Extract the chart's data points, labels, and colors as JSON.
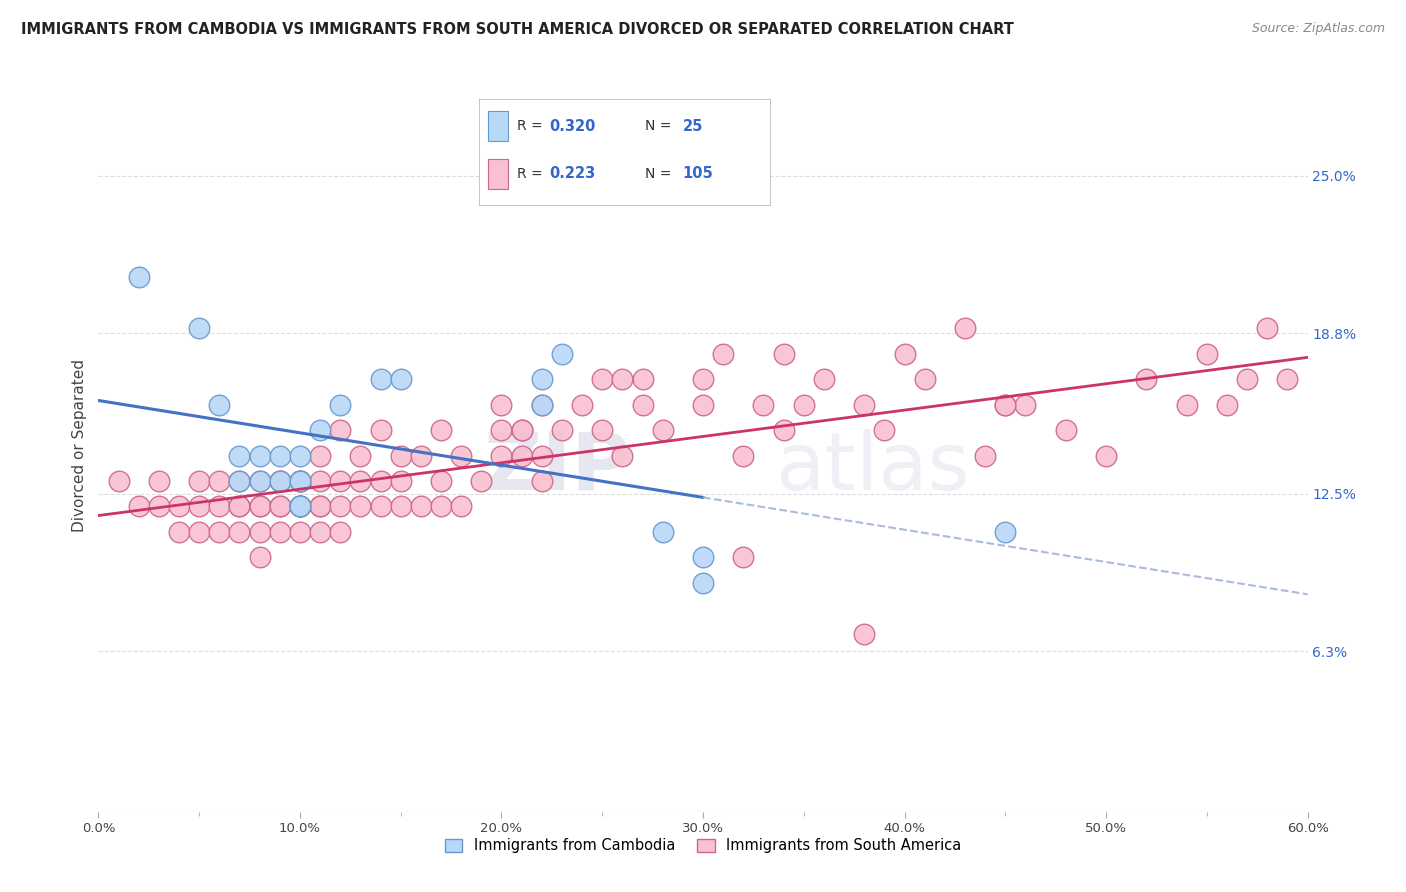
{
  "title": "IMMIGRANTS FROM CAMBODIA VS IMMIGRANTS FROM SOUTH AMERICA DIVORCED OR SEPARATED CORRELATION CHART",
  "source_text": "Source: ZipAtlas.com",
  "ylabel": "Divorced or Separated",
  "xlim": [
    0.0,
    0.6
  ],
  "ylim": [
    0.0,
    0.2875
  ],
  "xtick_labels": [
    "0.0%",
    "",
    "10.0%",
    "",
    "20.0%",
    "",
    "30.0%",
    "",
    "40.0%",
    "",
    "50.0%",
    "",
    "60.0%"
  ],
  "xtick_vals": [
    0.0,
    0.05,
    0.1,
    0.15,
    0.2,
    0.25,
    0.3,
    0.35,
    0.4,
    0.45,
    0.5,
    0.55,
    0.6
  ],
  "ytick_vals_right": [
    0.063,
    0.125,
    0.188,
    0.25
  ],
  "ytick_labels_right": [
    "6.3%",
    "12.5%",
    "18.8%",
    "25.0%"
  ],
  "R_cambodia": 0.32,
  "N_cambodia": 25,
  "R_south_america": 0.223,
  "N_south_america": 105,
  "color_cambodia": "#b8d8f8",
  "color_south_america": "#f8c0d0",
  "edge_color_cambodia": "#6699cc",
  "edge_color_south_america": "#cc6688",
  "line_color_cambodia": "#4472c4",
  "line_color_south_america": "#cc3366",
  "dash_color_cambodia": "#aabbdd",
  "legend_label_cambodia": "Immigrants from Cambodia",
  "legend_label_south_america": "Immigrants from South America",
  "background_color": "#ffffff",
  "grid_color": "#dddddd",
  "title_color": "#222222",
  "watermark_zip": "ZIP",
  "watermark_atlas": "atlas",
  "cambodia_x": [
    0.02,
    0.05,
    0.06,
    0.07,
    0.07,
    0.08,
    0.08,
    0.09,
    0.09,
    0.1,
    0.1,
    0.1,
    0.1,
    0.1,
    0.11,
    0.12,
    0.14,
    0.15,
    0.22,
    0.22,
    0.23,
    0.28,
    0.3,
    0.3,
    0.45
  ],
  "cambodia_y": [
    0.21,
    0.19,
    0.16,
    0.14,
    0.13,
    0.14,
    0.13,
    0.14,
    0.13,
    0.14,
    0.13,
    0.13,
    0.12,
    0.12,
    0.15,
    0.16,
    0.17,
    0.17,
    0.17,
    0.16,
    0.18,
    0.11,
    0.1,
    0.09,
    0.11
  ],
  "south_america_x": [
    0.01,
    0.02,
    0.03,
    0.03,
    0.04,
    0.04,
    0.05,
    0.05,
    0.05,
    0.06,
    0.06,
    0.06,
    0.07,
    0.07,
    0.07,
    0.07,
    0.08,
    0.08,
    0.08,
    0.08,
    0.08,
    0.09,
    0.09,
    0.09,
    0.09,
    0.09,
    0.1,
    0.1,
    0.1,
    0.1,
    0.1,
    0.1,
    0.11,
    0.11,
    0.11,
    0.11,
    0.11,
    0.12,
    0.12,
    0.12,
    0.12,
    0.13,
    0.13,
    0.13,
    0.14,
    0.14,
    0.14,
    0.15,
    0.15,
    0.15,
    0.16,
    0.16,
    0.17,
    0.17,
    0.17,
    0.18,
    0.18,
    0.19,
    0.2,
    0.2,
    0.2,
    0.21,
    0.21,
    0.22,
    0.22,
    0.22,
    0.23,
    0.24,
    0.25,
    0.25,
    0.26,
    0.27,
    0.27,
    0.28,
    0.3,
    0.3,
    0.31,
    0.32,
    0.33,
    0.34,
    0.34,
    0.35,
    0.36,
    0.38,
    0.39,
    0.4,
    0.41,
    0.43,
    0.44,
    0.45,
    0.46,
    0.48,
    0.5,
    0.52,
    0.54,
    0.55,
    0.56,
    0.57,
    0.58,
    0.59,
    0.45,
    0.38,
    0.32,
    0.26,
    0.21
  ],
  "south_america_y": [
    0.13,
    0.12,
    0.13,
    0.12,
    0.12,
    0.11,
    0.12,
    0.13,
    0.11,
    0.12,
    0.13,
    0.11,
    0.12,
    0.13,
    0.12,
    0.11,
    0.12,
    0.13,
    0.12,
    0.11,
    0.1,
    0.13,
    0.12,
    0.11,
    0.12,
    0.13,
    0.12,
    0.13,
    0.11,
    0.12,
    0.13,
    0.12,
    0.13,
    0.12,
    0.14,
    0.11,
    0.12,
    0.15,
    0.12,
    0.13,
    0.11,
    0.13,
    0.12,
    0.14,
    0.13,
    0.12,
    0.15,
    0.14,
    0.12,
    0.13,
    0.14,
    0.12,
    0.13,
    0.15,
    0.12,
    0.14,
    0.12,
    0.13,
    0.15,
    0.14,
    0.16,
    0.14,
    0.15,
    0.16,
    0.14,
    0.13,
    0.15,
    0.16,
    0.17,
    0.15,
    0.14,
    0.17,
    0.16,
    0.15,
    0.16,
    0.17,
    0.18,
    0.14,
    0.16,
    0.18,
    0.15,
    0.16,
    0.17,
    0.16,
    0.15,
    0.18,
    0.17,
    0.19,
    0.14,
    0.16,
    0.16,
    0.15,
    0.14,
    0.17,
    0.16,
    0.18,
    0.16,
    0.17,
    0.19,
    0.17,
    0.16,
    0.07,
    0.1,
    0.17,
    0.15
  ]
}
